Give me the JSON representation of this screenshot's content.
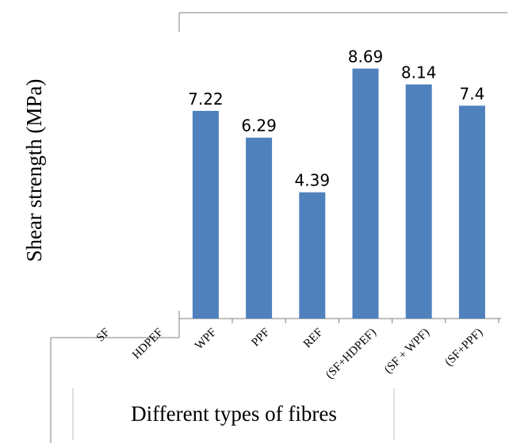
{
  "chart_data": {
    "type": "bar",
    "categories": [
      "SF",
      "HDPEF",
      "WPF",
      "PPF",
      "REF",
      "(SF+HDPEF)",
      "(SF + WPF)",
      "(SF+PPF)"
    ],
    "values": [
      null,
      null,
      7.22,
      6.29,
      4.39,
      8.69,
      8.14,
      7.4
    ],
    "data_labels": [
      "",
      "",
      "7.22",
      "6.29",
      "4.39",
      "8.69",
      "8.14",
      "7.4"
    ],
    "xlabel": "Different types of fibres",
    "ylabel": "Shear strength  (MPa)",
    "ylim": [
      0,
      10
    ],
    "grid": false,
    "legend": "none",
    "bar_color": "#4f81bd"
  }
}
